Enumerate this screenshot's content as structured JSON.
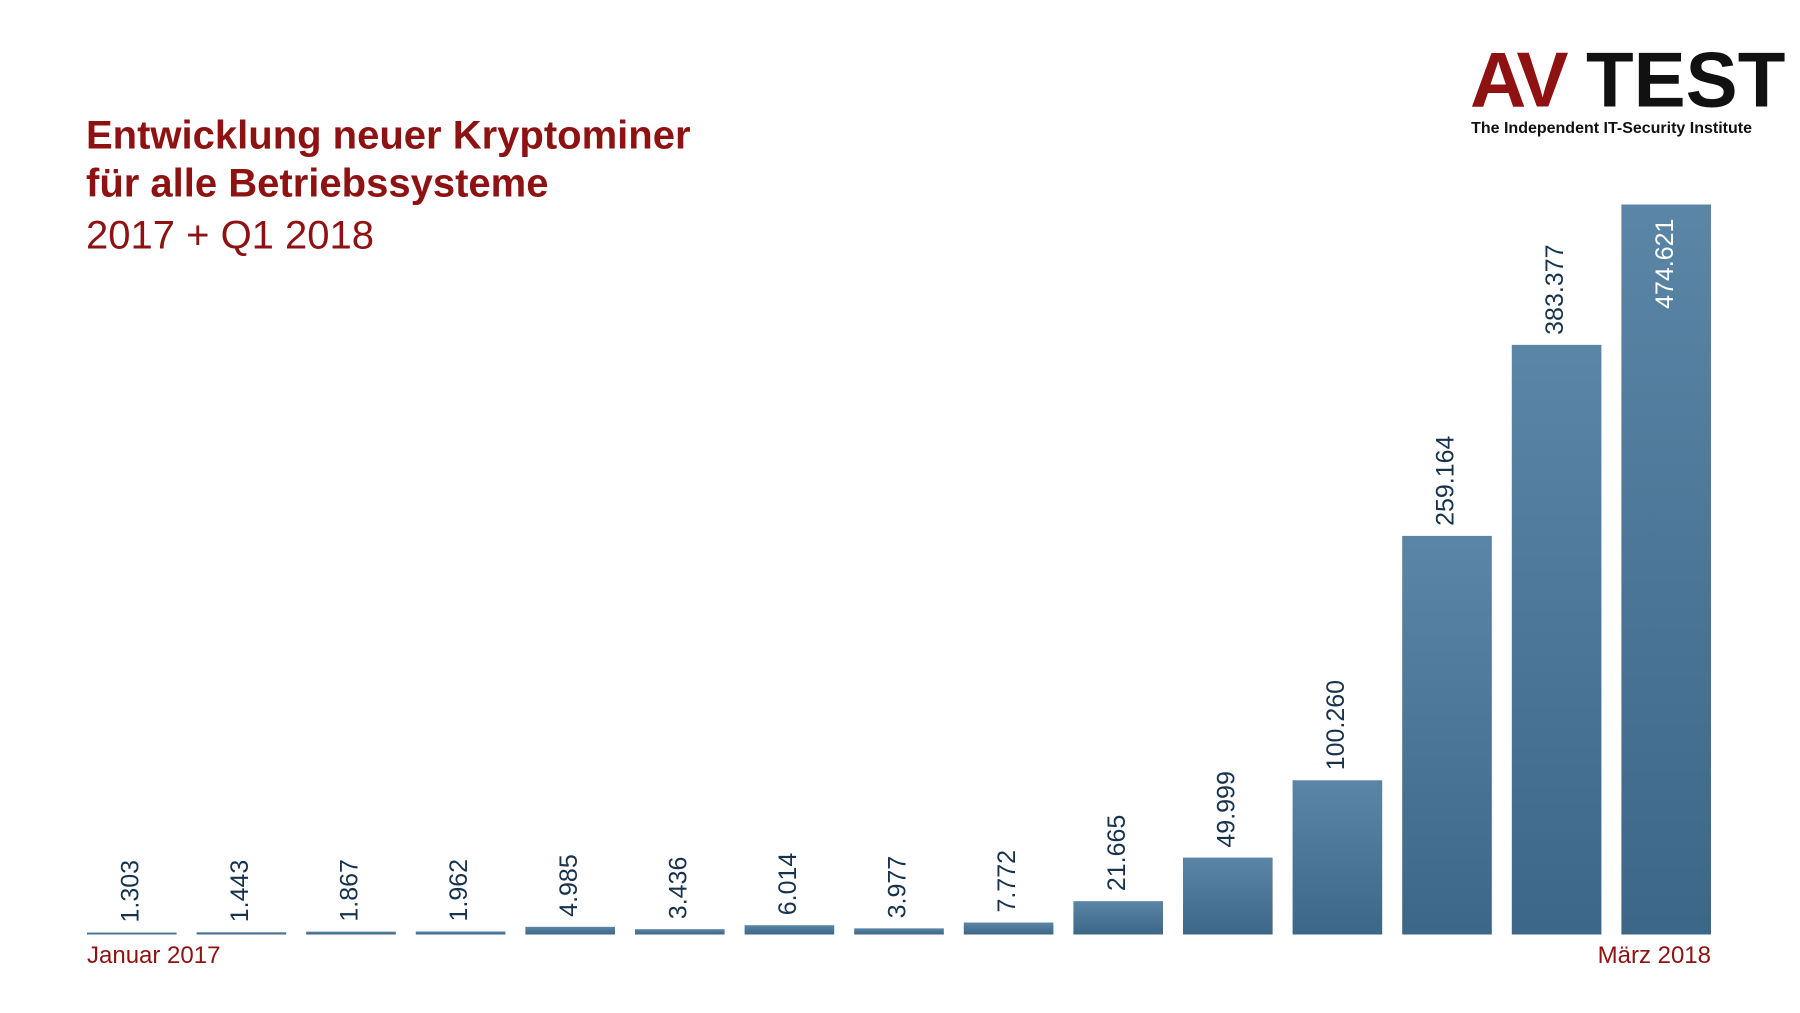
{
  "chart_data": {
    "type": "bar",
    "title": "Entwicklung neuer Kryptominer",
    "title_line2": "für alle Betriebssysteme",
    "subtitle": "2017 + Q1 2018",
    "logo": {
      "mark": "AV",
      "name": "TEST",
      "tagline": "The Independent IT-Security Institute"
    },
    "categories": [
      "Januar 2017",
      null,
      null,
      null,
      null,
      null,
      null,
      null,
      null,
      null,
      null,
      null,
      null,
      null,
      "März 2018"
    ],
    "values": [
      1303,
      1443,
      1867,
      1962,
      4985,
      3436,
      6014,
      3977,
      7772,
      21665,
      49999,
      100260,
      259164,
      383377,
      474621
    ],
    "value_labels": [
      "1.303",
      "1.443",
      "1.867",
      "1.962",
      "4.985",
      "3.436",
      "6.014",
      "3.977",
      "7.772",
      "21.665",
      "49.999",
      "100.260",
      "259.164",
      "383.377",
      "474.621"
    ],
    "color": "#44759a",
    "ylim": [
      0,
      500000
    ]
  }
}
